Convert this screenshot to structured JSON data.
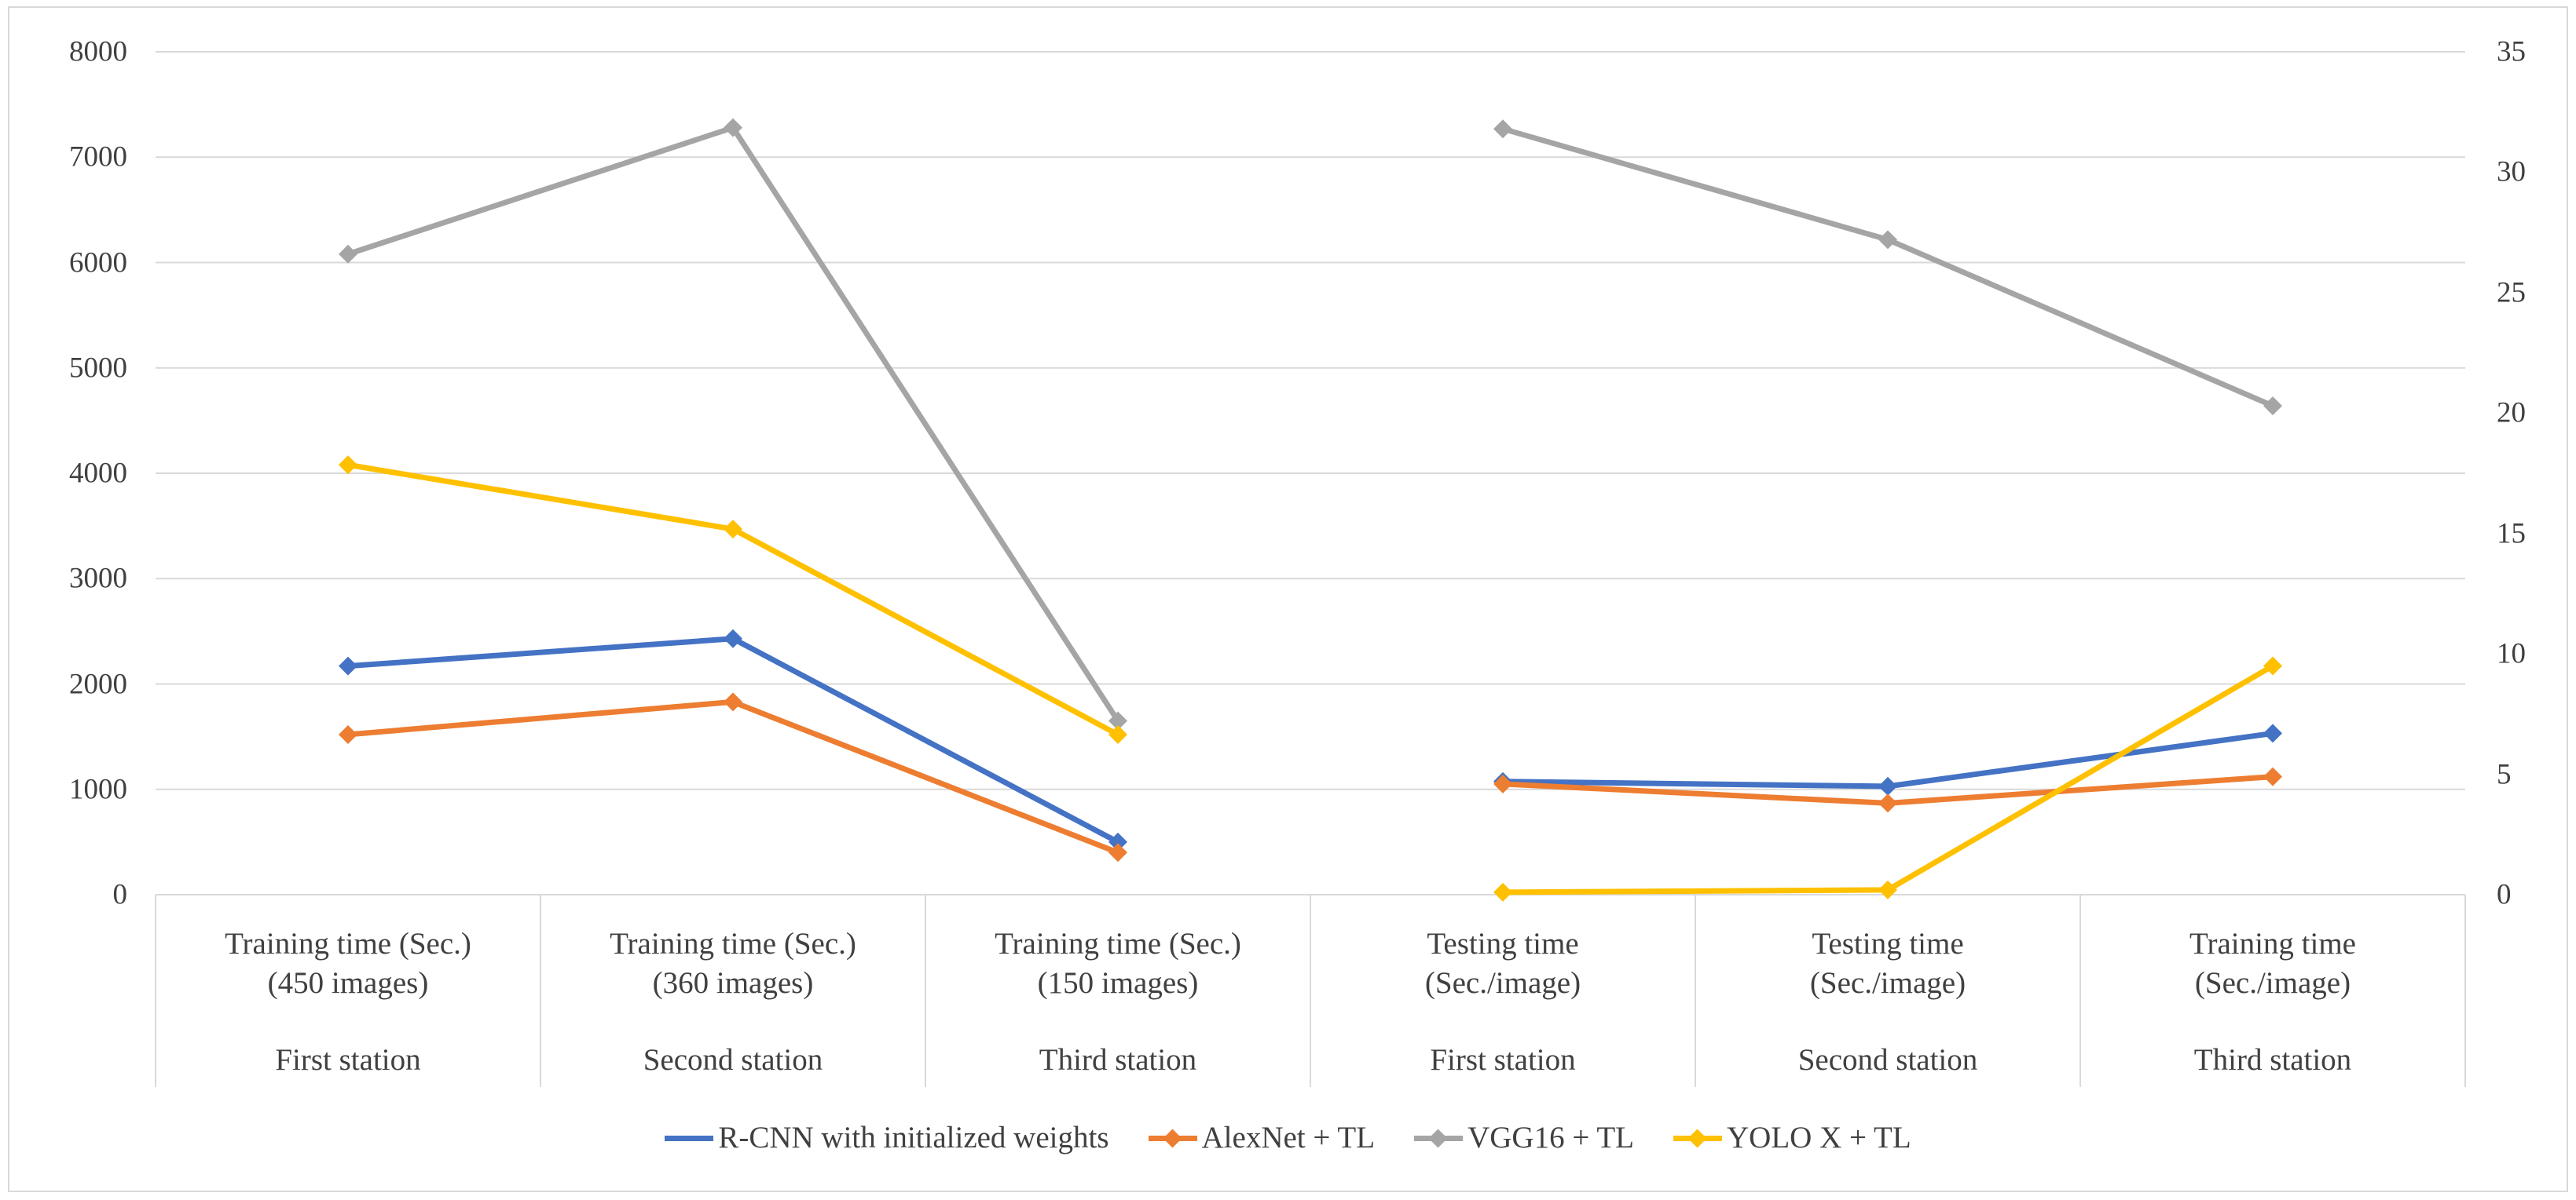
{
  "chart_data": {
    "type": "line",
    "title": "",
    "categories": [
      {
        "lines": [
          "Training time (Sec.)",
          "(450 images)"
        ],
        "station": "First station"
      },
      {
        "lines": [
          "Training time (Sec.)",
          "(360 images)"
        ],
        "station": "Second station"
      },
      {
        "lines": [
          "Training time (Sec.)",
          "(150 images)"
        ],
        "station": "Third station"
      },
      {
        "lines": [
          "Testing time",
          "(Sec./image)"
        ],
        "station": "First station"
      },
      {
        "lines": [
          "Testing time",
          "(Sec./image)"
        ],
        "station": "Second station"
      },
      {
        "lines": [
          "Training time",
          "(Sec./image)"
        ],
        "station": "Third station"
      }
    ],
    "left_axis": {
      "min": 0,
      "max": 8000,
      "step": 1000,
      "ticks": [
        "8000",
        "7000",
        "6000",
        "5000",
        "4000",
        "3000",
        "2000",
        "1000",
        "0"
      ]
    },
    "right_axis": {
      "min": 0,
      "max": 35,
      "step": 5,
      "ticks": [
        "35",
        "30",
        "25",
        "20",
        "15",
        "10",
        "5",
        "0"
      ]
    },
    "category_axis_scale": [
      "left",
      "left",
      "left",
      "right",
      "right",
      "right"
    ],
    "gap_after_category_index": 2,
    "series": [
      {
        "name": "R-CNN with initialized weights",
        "color": "#4472C4",
        "legend_diamond": false,
        "values": [
          2170,
          2430,
          500,
          4.7,
          4.5,
          6.7
        ]
      },
      {
        "name": "AlexNet + TL",
        "color": "#ED7D31",
        "legend_diamond": true,
        "values": [
          1520,
          1830,
          400,
          4.6,
          3.8,
          4.9
        ]
      },
      {
        "name": "VGG16 + TL",
        "color": "#A5A5A5",
        "legend_diamond": true,
        "values": [
          6080,
          7280,
          1650,
          31.8,
          27.2,
          20.3
        ]
      },
      {
        "name": "YOLO X + TL",
        "color": "#FFC000",
        "legend_diamond": true,
        "values": [
          4080,
          3470,
          1520,
          0.1,
          0.2,
          9.5
        ]
      }
    ],
    "grid": true,
    "legend_position": "bottom",
    "colors": {
      "gridline": "#D9D9D9",
      "cell_border": "#D9D9D9",
      "frame_border": "#D9D9D9",
      "text": "#404040",
      "background": "#FFFFFF"
    }
  }
}
